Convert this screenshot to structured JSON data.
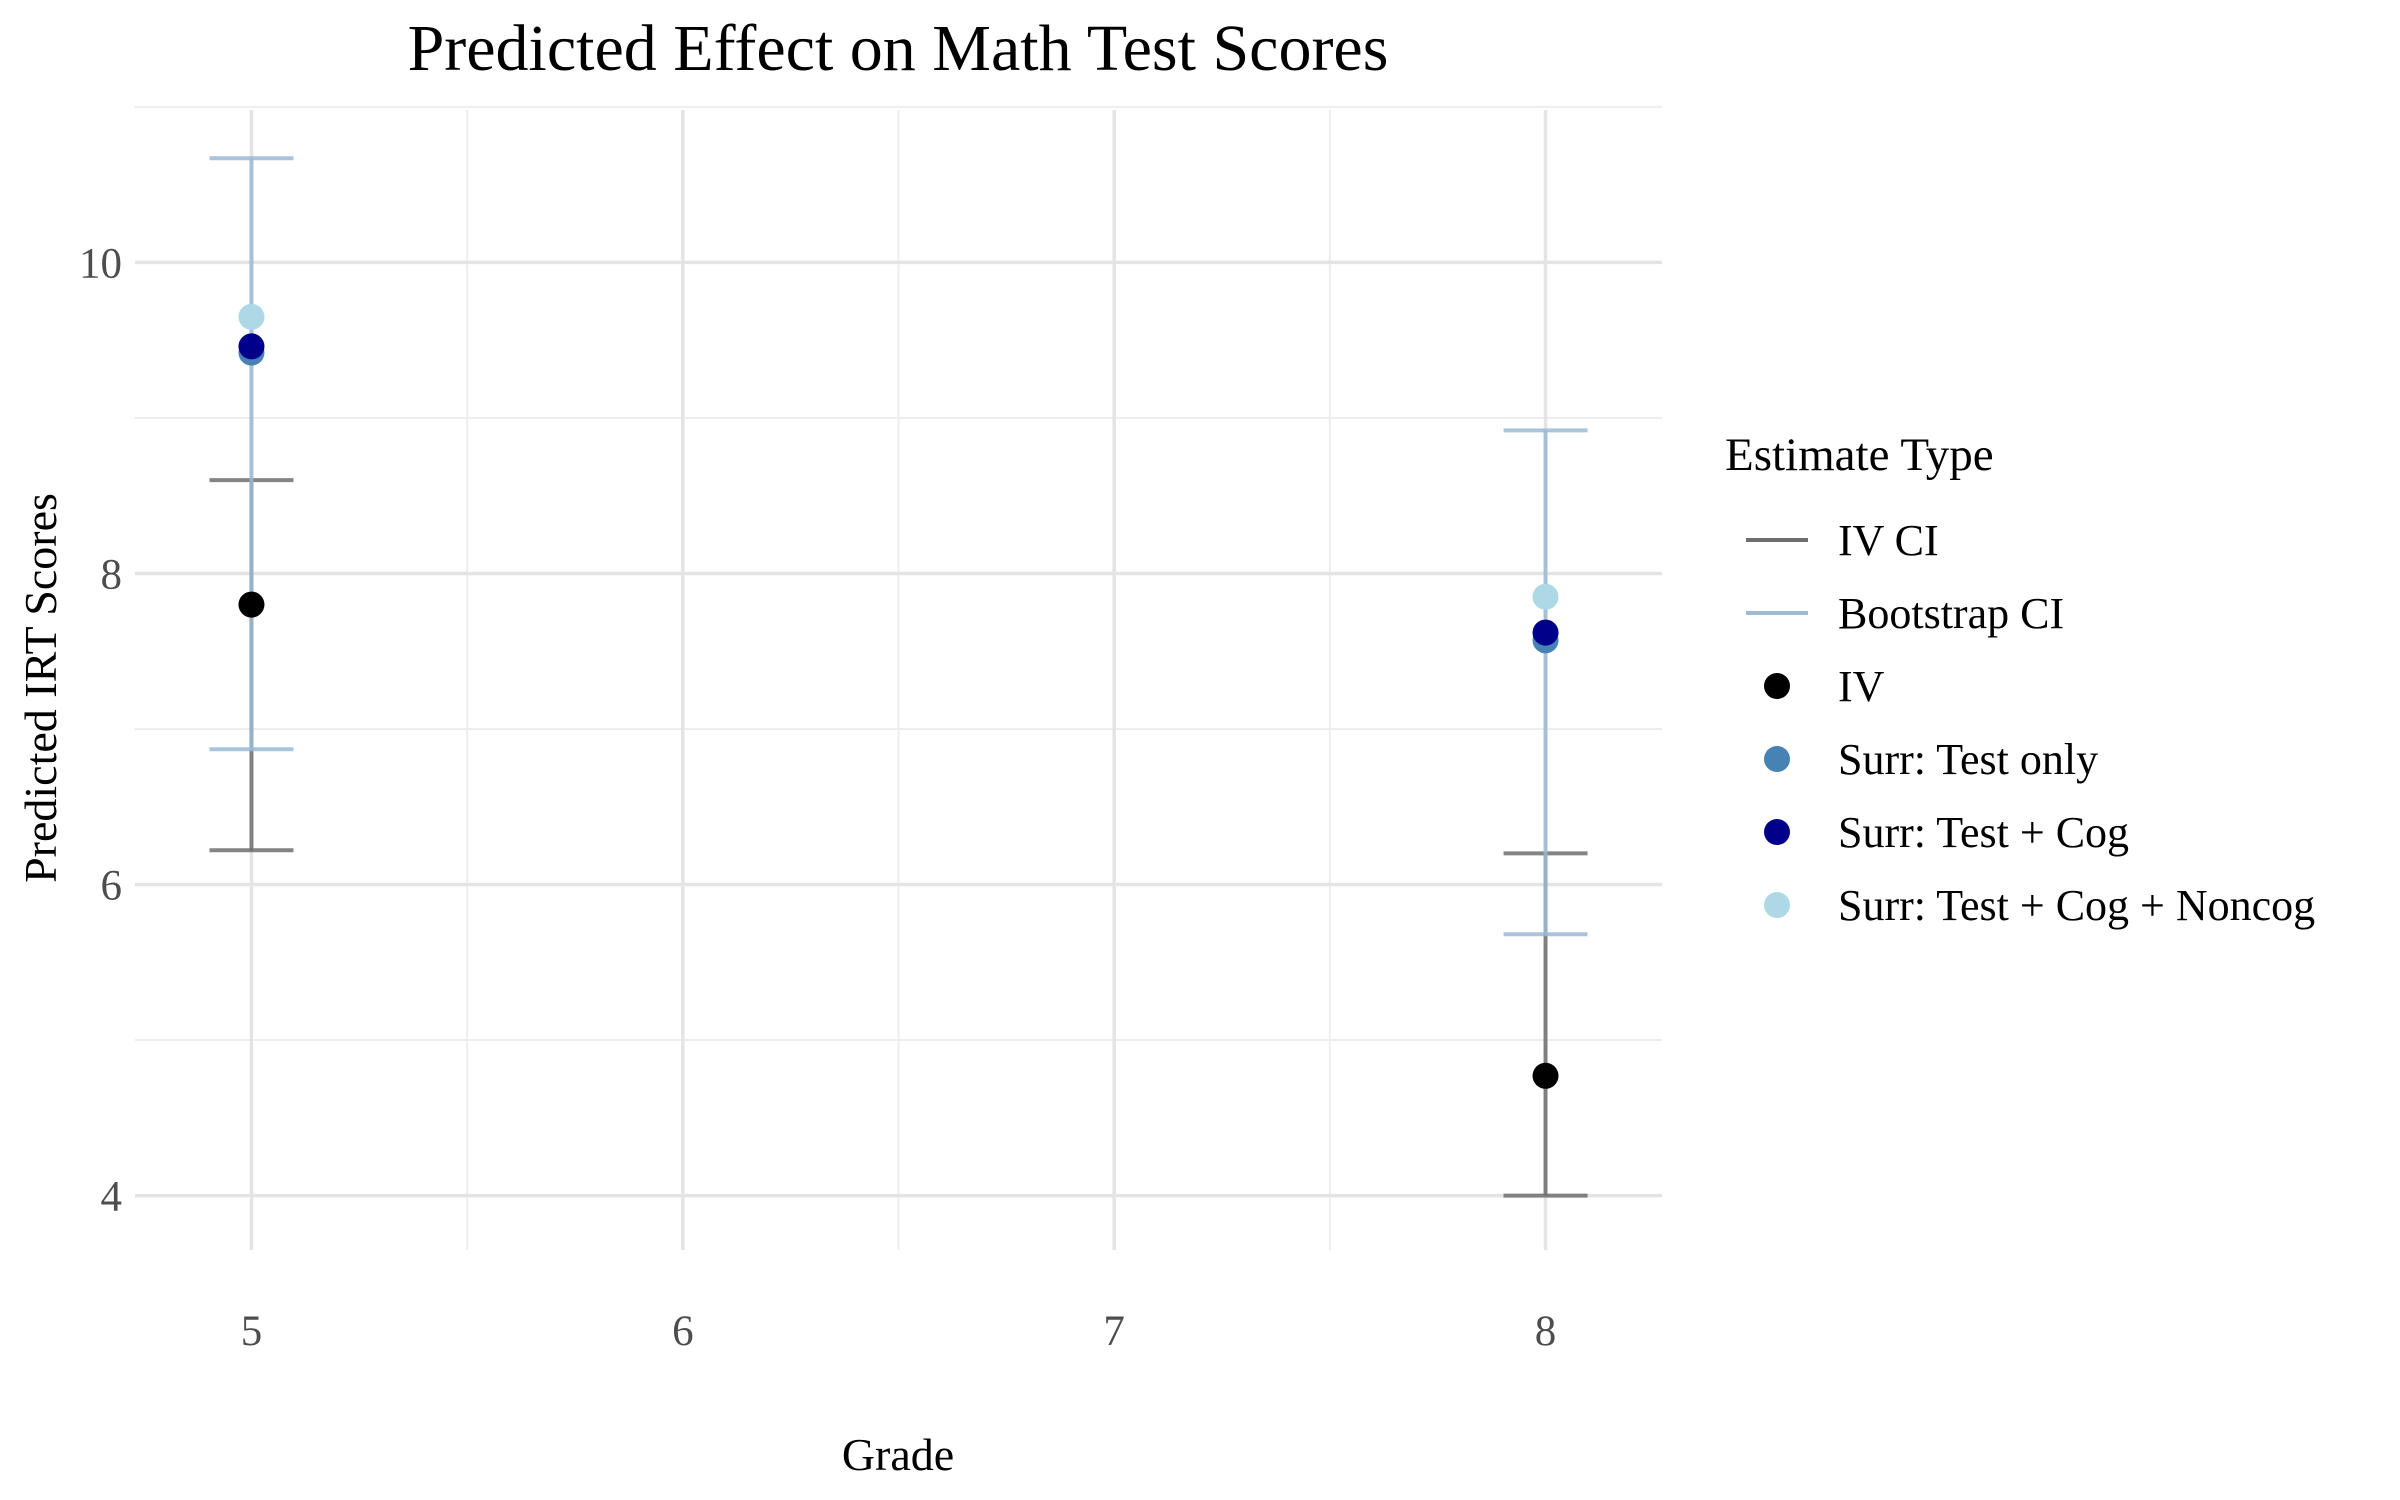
{
  "chart_data": {
    "type": "scatter",
    "title": "Predicted Effect on Math Test Scores",
    "xlabel": "Grade",
    "ylabel": "Predicted IRT Scores",
    "x_ticks": [
      "5",
      "6",
      "7",
      "8"
    ],
    "y_ticks": [
      "4",
      "6",
      "8",
      "10"
    ],
    "xlim": [
      4.73,
      8.27
    ],
    "ylim": [
      3.65,
      10.98
    ],
    "grid": true,
    "legend": {
      "title": "Estimate Type",
      "position": "right",
      "items": [
        {
          "label": "IV CI",
          "kind": "line",
          "color": "#6e6e6e"
        },
        {
          "label": "Bootstrap CI",
          "kind": "line",
          "color": "#9bbad6"
        },
        {
          "label": "IV",
          "kind": "point",
          "color": "#000000"
        },
        {
          "label": "Surr: Test only",
          "kind": "point",
          "color": "#4682b4"
        },
        {
          "label": "Surr: Test + Cog",
          "kind": "point",
          "color": "#00008b"
        },
        {
          "label": "Surr: Test + Cog + Noncog",
          "kind": "point",
          "color": "#add8e6"
        }
      ]
    },
    "error_bars": [
      {
        "name": "IV CI",
        "color": "#6e6e6e",
        "data": [
          {
            "x": 5,
            "low": 6.22,
            "high": 8.6
          },
          {
            "x": 8,
            "low": 4.0,
            "high": 6.2
          }
        ]
      },
      {
        "name": "Bootstrap CI",
        "color": "#9bbad6",
        "data": [
          {
            "x": 5,
            "low": 6.87,
            "high": 10.67
          },
          {
            "x": 8,
            "low": 5.68,
            "high": 8.92
          }
        ]
      }
    ],
    "series": [
      {
        "name": "IV",
        "color": "#000000",
        "x": [
          5,
          8
        ],
        "y": [
          7.8,
          4.77
        ]
      },
      {
        "name": "Surr: Test only",
        "color": "#4682b4",
        "x": [
          5,
          8
        ],
        "y": [
          9.42,
          7.57
        ]
      },
      {
        "name": "Surr: Test + Cog",
        "color": "#00008b",
        "x": [
          5,
          8
        ],
        "y": [
          9.46,
          7.62
        ]
      },
      {
        "name": "Surr: Test + Cog + Noncog",
        "color": "#add8e6",
        "x": [
          5,
          8
        ],
        "y": [
          9.65,
          7.85
        ]
      }
    ]
  }
}
